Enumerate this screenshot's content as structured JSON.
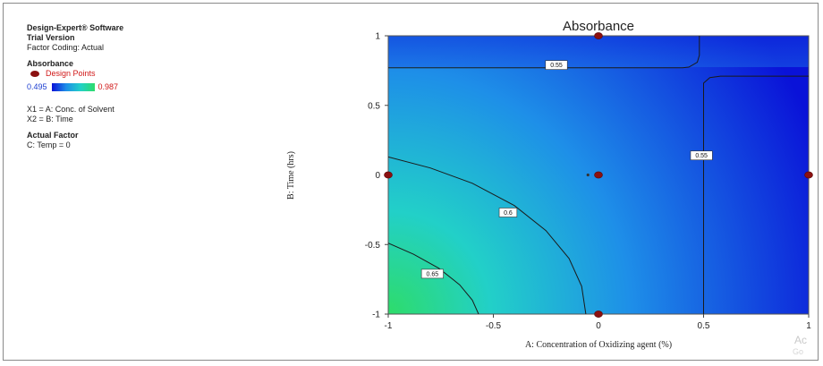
{
  "sidebar": {
    "software": "Design-Expert® Software",
    "version": "Trial Version",
    "coding": "Factor Coding: Actual",
    "response": "Absorbance",
    "design_points": "Design Points",
    "scale_min": "0.495",
    "scale_max": "0.987",
    "x1": "X1 = A: Conc. of Solvent",
    "x2": "X2 = B: Time",
    "actual_factor": "Actual Factor",
    "temp": "C: Temp = 0"
  },
  "watermark": {
    "line1": "Ac",
    "line2": "Go"
  },
  "chart_data": {
    "type": "contour",
    "title": "Absorbance",
    "xlabel": "A: Concentration of Oxidizing agent (%)",
    "ylabel": "B: Time (hrs)",
    "xlim": [
      -1,
      1
    ],
    "ylim": [
      -1,
      1
    ],
    "x_ticks": [
      -1,
      -0.5,
      0,
      0.5,
      1
    ],
    "y_ticks": [
      -1,
      -0.5,
      0,
      0.5,
      1
    ],
    "x_tick_labels": [
      "-1",
      "-0.5",
      "0",
      "0.5",
      "1"
    ],
    "y_tick_labels": [
      "-1",
      "-0.5",
      "0",
      "0.5",
      "1"
    ],
    "contour_levels": [
      {
        "label": "0.55",
        "position": "upper band",
        "x": -0.2,
        "y": 0.79
      },
      {
        "label": "0.55",
        "position": "right vertical",
        "x": 0.49,
        "y": 0.14
      },
      {
        "label": "0.6",
        "position": "lower-left arc",
        "x": -0.43,
        "y": -0.27
      },
      {
        "label": "0.65",
        "position": "lower-left corner",
        "x": -0.79,
        "y": -0.71
      }
    ],
    "design_points": [
      {
        "x": 0,
        "y": 1
      },
      {
        "x": -1,
        "y": 0
      },
      {
        "x": 0,
        "y": 0
      },
      {
        "x": 1,
        "y": 0
      },
      {
        "x": 0,
        "y": -1
      }
    ],
    "center_marker": {
      "x": -0.05,
      "y": 0
    },
    "color_scale": {
      "low": "#0a12d8",
      "mid": "#1e8fe8",
      "high": "#2edc6a"
    },
    "grid": false
  }
}
